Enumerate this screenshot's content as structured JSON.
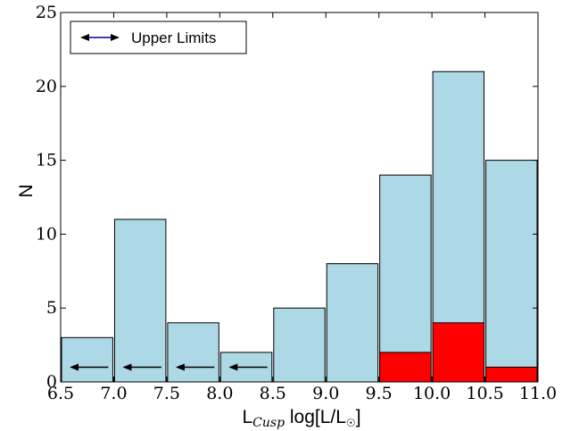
{
  "chart_data": {
    "type": "bar",
    "xlabel_main": "L",
    "xlabel_sub": "Cusp",
    "xlabel_rest": " log[L/L",
    "xlabel_sun": "☉",
    "xlabel_close": "]",
    "ylabel": "N",
    "xlim": [
      6.5,
      11.0
    ],
    "ylim": [
      0,
      25
    ],
    "x_ticks": [
      "6.5",
      "7.0",
      "7.5",
      "8.0",
      "8.5",
      "9.0",
      "9.5",
      "10.0",
      "10.5",
      "11.0"
    ],
    "y_ticks": [
      "0",
      "5",
      "10",
      "15",
      "20",
      "25"
    ],
    "bin_edges": [
      6.5,
      7.0,
      7.5,
      8.0,
      8.5,
      9.0,
      9.5,
      10.0,
      10.5,
      11.0
    ],
    "series": [
      {
        "color": "#add8e6",
        "values": [
          3,
          11,
          4,
          2,
          5,
          8,
          14,
          21,
          15
        ]
      },
      {
        "color": "#ff0000",
        "values": [
          0,
          0,
          0,
          0,
          0,
          0,
          2,
          4,
          1
        ]
      }
    ],
    "upper_limit_bins": [
      0,
      1,
      2,
      3
    ],
    "upper_limit_y": 1,
    "legend": {
      "label": "Upper Limits",
      "position": "top-left",
      "arrow_color": "#00008b"
    }
  }
}
